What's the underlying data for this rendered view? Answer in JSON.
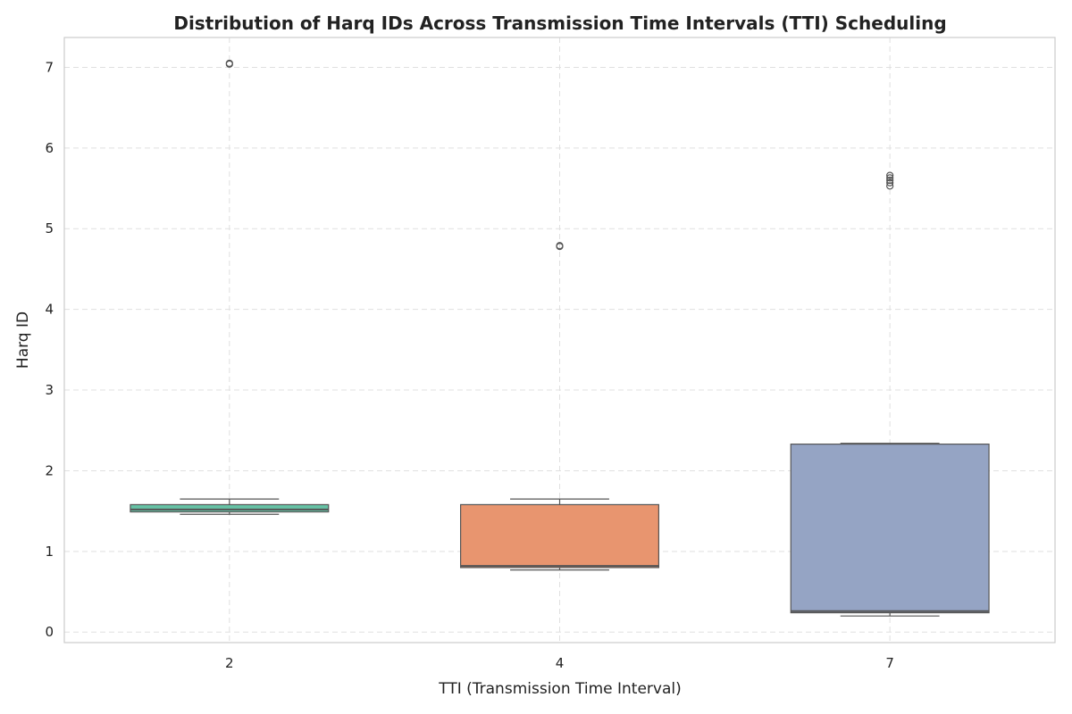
{
  "chart_data": {
    "type": "box",
    "title": "Distribution of Harq IDs Across Transmission Time Intervals (TTI) Scheduling",
    "xlabel": "TTI (Transmission Time Interval)",
    "ylabel": "Harq ID",
    "categories": [
      "2",
      "4",
      "7"
    ],
    "y_ticks": [
      0,
      1,
      2,
      3,
      4,
      5,
      6,
      7
    ],
    "ylim": [
      -0.13,
      7.37
    ],
    "grid": true,
    "boxes": [
      {
        "category": "2",
        "whisker_low": 1.46,
        "q1": 1.49,
        "median": 1.52,
        "q3": 1.58,
        "whisker_high": 1.65,
        "fliers": [
          7.04,
          7.05
        ],
        "color": "#66c2a5"
      },
      {
        "category": "4",
        "whisker_low": 0.77,
        "q1": 0.8,
        "median": 0.82,
        "q3": 1.58,
        "whisker_high": 1.65,
        "fliers": [
          4.78,
          4.79
        ],
        "color": "#e8956f"
      },
      {
        "category": "7",
        "whisker_low": 0.2,
        "q1": 0.24,
        "median": 0.26,
        "q3": 2.33,
        "whisker_high": 2.34,
        "fliers": [
          5.53,
          5.57,
          5.6,
          5.63,
          5.66
        ],
        "color": "#95a4c4"
      }
    ]
  }
}
